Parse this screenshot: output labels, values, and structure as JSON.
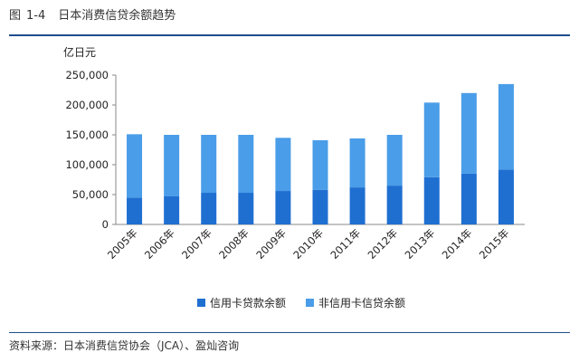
{
  "figure": {
    "label": "图",
    "number": "1-4",
    "title": "日本消费信贷余额趋势",
    "source": "资料来源：日本消费信贷协会（JCA）、盈灿咨询"
  },
  "chart_data": {
    "type": "bar",
    "stacked": true,
    "unit_label": "亿日元",
    "categories": [
      "2005年",
      "2006年",
      "2007年",
      "2008年",
      "2009年",
      "2010年",
      "2011年",
      "2012年",
      "2013年",
      "2014年",
      "2015年"
    ],
    "series": [
      {
        "name": "信用卡贷款余额",
        "color": "#1f6fd1",
        "values": [
          45000,
          47000,
          53000,
          53000,
          56000,
          58000,
          62000,
          65000,
          79000,
          85000,
          92000
        ]
      },
      {
        "name": "非信用卡信贷余额",
        "color": "#4a9de8",
        "values": [
          106000,
          103000,
          97000,
          97000,
          89000,
          83000,
          82000,
          85000,
          125000,
          135000,
          143000
        ]
      }
    ],
    "ylim": [
      0,
      250000
    ],
    "yticks": [
      "0",
      "50,000",
      "100,000",
      "150,000",
      "200,000",
      "250,000"
    ],
    "ytick_values": [
      0,
      50000,
      100000,
      150000,
      200000,
      250000
    ],
    "legend_position": "bottom",
    "grid": false
  }
}
